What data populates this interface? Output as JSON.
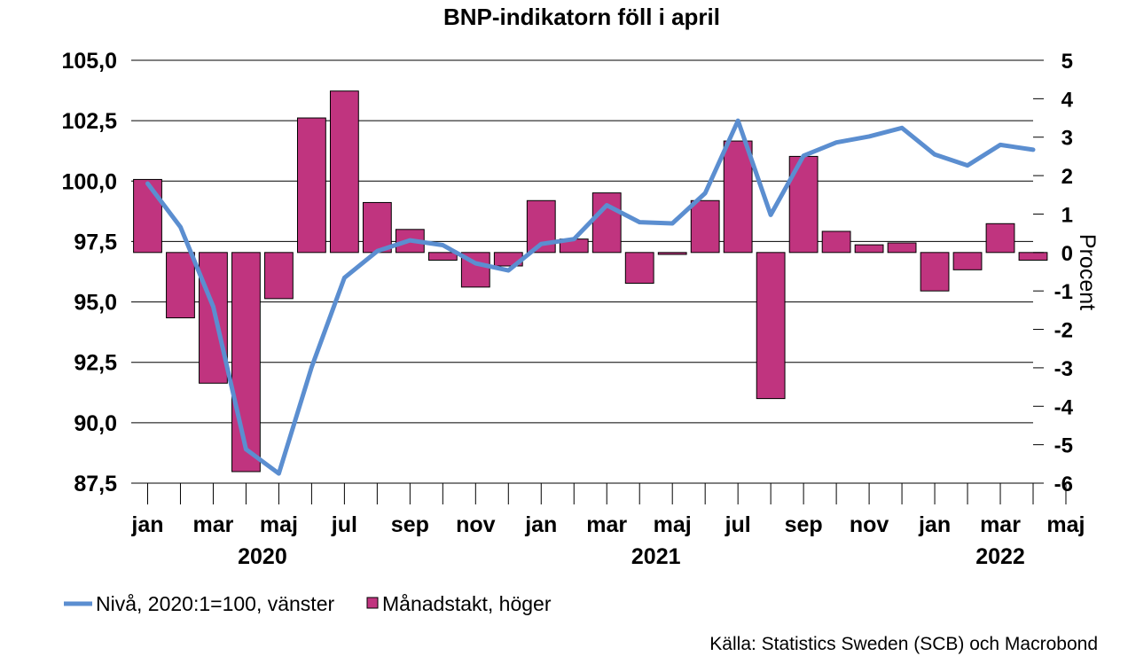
{
  "chart_data": {
    "type": "bar+line",
    "title": "BNP-indikatorn föll i april",
    "source": "Källa: Statistics Sweden (SCB) och Macrobond",
    "y_left": {
      "ylim": [
        87.5,
        105.0
      ],
      "ticks": [
        "105,0",
        "102,5",
        "100,0",
        "97,5",
        "95,0",
        "92,5",
        "90,0",
        "87,5"
      ]
    },
    "y_right": {
      "label": "Procent",
      "ylim": [
        -6,
        5
      ],
      "ticks": [
        "5",
        "4",
        "3",
        "2",
        "1",
        "0",
        "-1",
        "-2",
        "-3",
        "-4",
        "-5",
        "-6"
      ]
    },
    "x_tick_labels": [
      "jan",
      "mar",
      "maj",
      "jul",
      "sep",
      "nov",
      "jan",
      "mar",
      "maj",
      "jul",
      "sep",
      "nov",
      "jan",
      "mar",
      "maj"
    ],
    "x_years": [
      "2020",
      "2021",
      "2022"
    ],
    "months": [
      "2020-01",
      "2020-02",
      "2020-03",
      "2020-04",
      "2020-05",
      "2020-06",
      "2020-07",
      "2020-08",
      "2020-09",
      "2020-10",
      "2020-11",
      "2020-12",
      "2021-01",
      "2021-02",
      "2021-03",
      "2021-04",
      "2021-05",
      "2021-06",
      "2021-07",
      "2021-08",
      "2021-09",
      "2021-10",
      "2021-11",
      "2021-12",
      "2022-01",
      "2022-02",
      "2022-03",
      "2022-04"
    ],
    "series": [
      {
        "name": "Månadstakt, höger",
        "type": "bar",
        "axis": "right",
        "color": "#c0347f",
        "values": [
          1.9,
          -1.7,
          -3.4,
          -5.7,
          -1.2,
          3.5,
          4.2,
          1.3,
          0.6,
          -0.2,
          -0.9,
          -0.35,
          1.35,
          0.35,
          1.55,
          -0.8,
          -0.05,
          1.35,
          2.9,
          -3.8,
          2.5,
          0.55,
          0.2,
          0.25,
          -1.0,
          -0.45,
          0.75,
          -0.2
        ]
      },
      {
        "name": "Nivå, 2020:1=100, vänster",
        "type": "line",
        "axis": "left",
        "color": "#5b8ed0",
        "values": [
          99.9,
          98.1,
          94.8,
          88.9,
          87.9,
          92.3,
          96.0,
          97.1,
          97.55,
          97.35,
          96.6,
          96.3,
          97.4,
          97.6,
          99.0,
          98.3,
          98.25,
          99.5,
          102.5,
          98.6,
          101.05,
          101.6,
          101.85,
          102.2,
          101.1,
          100.65,
          101.5,
          101.3
        ]
      }
    ],
    "legend": {
      "placement": "bottom-left"
    }
  }
}
